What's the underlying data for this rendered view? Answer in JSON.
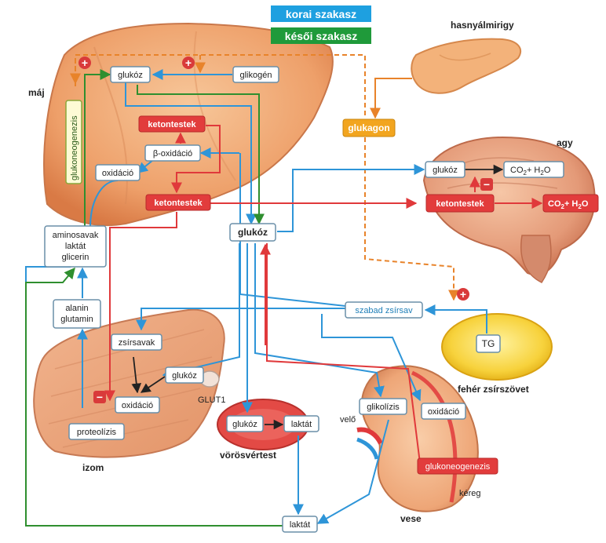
{
  "legend": {
    "early_label": "korai szakasz",
    "early_color": "#1ea0e0",
    "late_label": "késői szakasz",
    "late_color": "#1f9a3a"
  },
  "colors": {
    "blue_arrow": "#2e95d8",
    "green_arrow": "#2f8f2f",
    "red_arrow": "#e0393b",
    "orange_arrow": "#e8832a",
    "box_border": "#6a8fa8",
    "red_box": "#e23c3c",
    "orange_box": "#f2a51f",
    "plus_minus": "#d93a3a"
  },
  "organs": {
    "liver": "máj",
    "pancreas": "hasnyálmirigy",
    "brain": "agy",
    "muscle": "izom",
    "rbc": "vörösvértest",
    "adipose": "fehér zsírszövet",
    "kidney": "vese",
    "medulla": "velő",
    "cortex": "kéreg",
    "glut1": "GLUT1"
  },
  "boxes": {
    "liver_glucose": "glukóz",
    "glycogen": "glikogén",
    "ketones_liver": "ketontestek",
    "beta_ox": "β-oxidáció",
    "oxidation_liver": "oxidáció",
    "gluconeo_liver": "glukoneogenezis",
    "ketones_blood": "ketontestek",
    "aminoacids_l1": "aminosavak",
    "aminoacids_l2": "laktát",
    "aminoacids_l3": "glicerin",
    "alanine_l1": "alanin",
    "alanine_l2": "glutamin",
    "blood_glucose": "glukóz",
    "glucagon": "glukagon",
    "brain_glucose": "glukóz",
    "brain_co2_a": "CO",
    "brain_co2_sub": "2",
    "brain_co2_b": "+ H",
    "brain_h2o_sub": "2",
    "brain_h2o_c": "O",
    "brain_ketones": "ketontestek",
    "ffa": "szabad zsírsav",
    "tg": "TG",
    "fatty_acids": "zsírsavak",
    "muscle_glucose": "glukóz",
    "oxidation_muscle": "oxidáció",
    "proteolysis": "proteolízis",
    "rbc_glucose": "glukóz",
    "rbc_lactate": "laktát",
    "glycolysis": "glikolízis",
    "oxidation_kidney": "oxidáció",
    "gluconeo_kidney": "glukoneogenezis",
    "lactate_bottom": "laktát"
  },
  "signs": {
    "plus": "+",
    "minus": "−"
  }
}
